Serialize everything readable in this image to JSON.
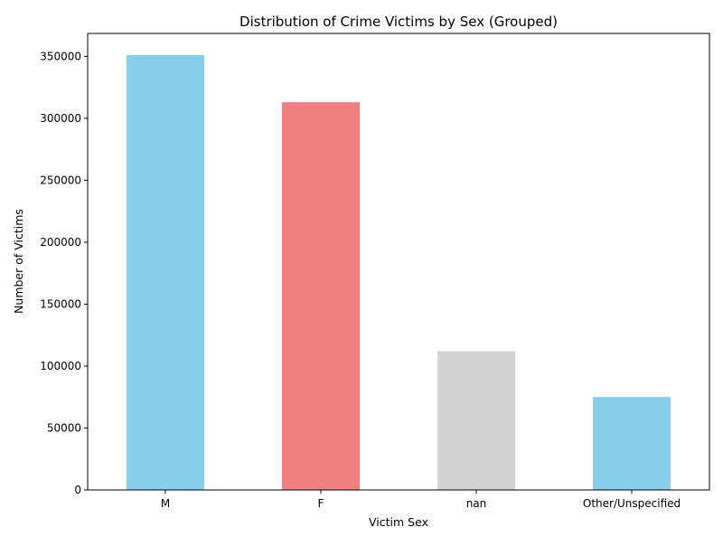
{
  "chart_data": {
    "type": "bar",
    "title": "Distribution of Crime Victims by Sex (Grouped)",
    "xlabel": "Victim Sex",
    "ylabel": "Number of Victims",
    "categories": [
      "M",
      "F",
      "nan",
      "Other/Unspecified"
    ],
    "values": [
      351000,
      313000,
      112000,
      75000
    ],
    "colors": [
      "#87ceeb",
      "#f08080",
      "#d3d3d3",
      "#87ceeb"
    ],
    "ylim": [
      0,
      368500
    ],
    "yticks": [
      0,
      50000,
      100000,
      150000,
      200000,
      250000,
      300000,
      350000
    ],
    "grid": false,
    "legend": "none"
  }
}
